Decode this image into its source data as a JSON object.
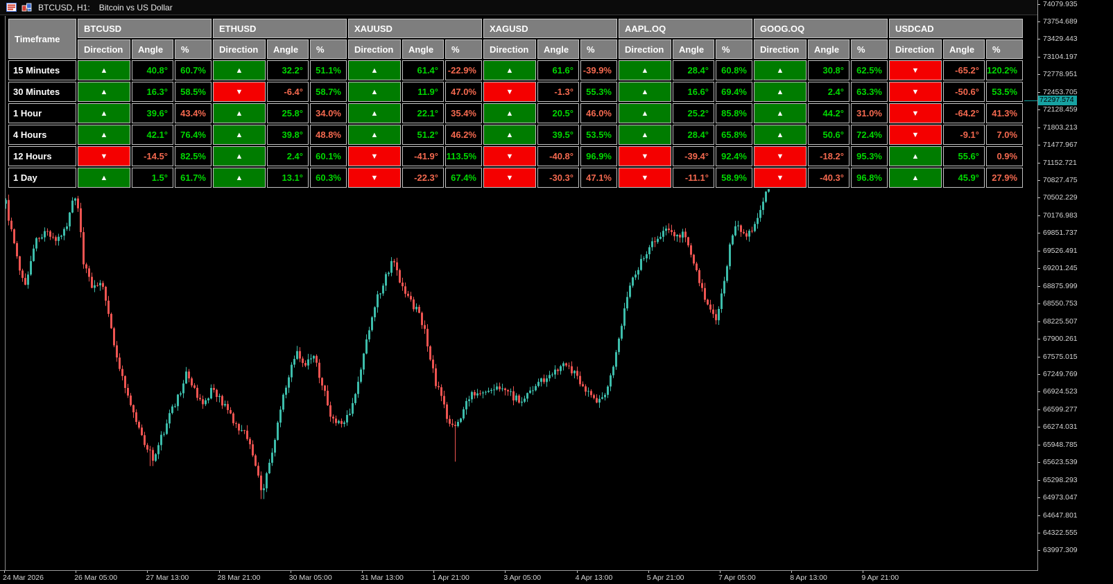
{
  "window": {
    "title_symbol": "BTCUSD, H1:",
    "title_desc": "Bitcoin vs US Dollar"
  },
  "dashboard": {
    "timeframe_header": "Timeframe",
    "sub_headers": [
      "Direction",
      "Angle",
      "%"
    ],
    "symbols": [
      "BTCUSD",
      "ETHUSD",
      "XAUUSD",
      "XAGUSD",
      "AAPL.OQ",
      "GOOG.OQ",
      "USDCAD"
    ],
    "colors": {
      "up_cell": "#007c00",
      "down_cell": "#f40000",
      "positive_text": "#00d800",
      "negative_text": "#f4694f",
      "header_bg": "#7e7e7e",
      "cell_bg": "#000000",
      "border": "#c3c3c3"
    },
    "rows": [
      {
        "tf": "15 Minutes",
        "cells": [
          {
            "d": "up",
            "a": "40.8°",
            "p": "60.7%",
            "pc": "g"
          },
          {
            "d": "up",
            "a": "32.2°",
            "p": "51.1%",
            "pc": "g"
          },
          {
            "d": "up",
            "a": "61.4°",
            "p": "-22.9%",
            "pc": "r"
          },
          {
            "d": "up",
            "a": "61.6°",
            "p": "-39.9%",
            "pc": "r"
          },
          {
            "d": "up",
            "a": "28.4°",
            "p": "60.8%",
            "pc": "g"
          },
          {
            "d": "up",
            "a": "30.8°",
            "p": "62.5%",
            "pc": "g"
          },
          {
            "d": "down",
            "a": "-65.2°",
            "p": "120.2%",
            "pc": "g"
          }
        ]
      },
      {
        "tf": "30 Minutes",
        "cells": [
          {
            "d": "up",
            "a": "16.3°",
            "p": "58.5%",
            "pc": "g"
          },
          {
            "d": "down",
            "a": "-6.4°",
            "p": "58.7%",
            "pc": "g"
          },
          {
            "d": "up",
            "a": "11.9°",
            "p": "47.0%",
            "pc": "r"
          },
          {
            "d": "down",
            "a": "-1.3°",
            "p": "55.3%",
            "pc": "g"
          },
          {
            "d": "up",
            "a": "16.6°",
            "p": "69.4%",
            "pc": "g"
          },
          {
            "d": "up",
            "a": "2.4°",
            "p": "63.3%",
            "pc": "g"
          },
          {
            "d": "down",
            "a": "-50.6°",
            "p": "53.5%",
            "pc": "g"
          }
        ]
      },
      {
        "tf": "1 Hour",
        "cells": [
          {
            "d": "up",
            "a": "39.6°",
            "p": "43.4%",
            "pc": "r"
          },
          {
            "d": "up",
            "a": "25.8°",
            "p": "34.0%",
            "pc": "r"
          },
          {
            "d": "up",
            "a": "22.1°",
            "p": "35.4%",
            "pc": "r"
          },
          {
            "d": "up",
            "a": "20.5°",
            "p": "46.0%",
            "pc": "r"
          },
          {
            "d": "up",
            "a": "25.2°",
            "p": "85.8%",
            "pc": "g"
          },
          {
            "d": "up",
            "a": "44.2°",
            "p": "31.0%",
            "pc": "r"
          },
          {
            "d": "down",
            "a": "-64.2°",
            "p": "41.3%",
            "pc": "r"
          }
        ]
      },
      {
        "tf": "4 Hours",
        "cells": [
          {
            "d": "up",
            "a": "42.1°",
            "p": "76.4%",
            "pc": "g"
          },
          {
            "d": "up",
            "a": "39.8°",
            "p": "48.8%",
            "pc": "r"
          },
          {
            "d": "up",
            "a": "51.2°",
            "p": "46.2%",
            "pc": "r"
          },
          {
            "d": "up",
            "a": "39.5°",
            "p": "53.5%",
            "pc": "g"
          },
          {
            "d": "up",
            "a": "28.4°",
            "p": "65.8%",
            "pc": "g"
          },
          {
            "d": "up",
            "a": "50.6°",
            "p": "72.4%",
            "pc": "g"
          },
          {
            "d": "down",
            "a": "-9.1°",
            "p": "7.0%",
            "pc": "r"
          }
        ]
      },
      {
        "tf": "12 Hours",
        "cells": [
          {
            "d": "down",
            "a": "-14.5°",
            "p": "82.5%",
            "pc": "g"
          },
          {
            "d": "up",
            "a": "2.4°",
            "p": "60.1%",
            "pc": "g"
          },
          {
            "d": "down",
            "a": "-41.9°",
            "p": "113.5%",
            "pc": "g"
          },
          {
            "d": "down",
            "a": "-40.8°",
            "p": "96.9%",
            "pc": "g"
          },
          {
            "d": "down",
            "a": "-39.4°",
            "p": "92.4%",
            "pc": "g"
          },
          {
            "d": "down",
            "a": "-18.2°",
            "p": "95.3%",
            "pc": "g"
          },
          {
            "d": "up",
            "a": "55.6°",
            "p": "0.9%",
            "pc": "r"
          }
        ]
      },
      {
        "tf": "1 Day",
        "cells": [
          {
            "d": "up",
            "a": "1.5°",
            "p": "61.7%",
            "pc": "g"
          },
          {
            "d": "up",
            "a": "13.1°",
            "p": "60.3%",
            "pc": "g"
          },
          {
            "d": "down",
            "a": "-22.3°",
            "p": "67.4%",
            "pc": "g"
          },
          {
            "d": "down",
            "a": "-30.3°",
            "p": "47.1%",
            "pc": "r"
          },
          {
            "d": "down",
            "a": "-11.1°",
            "p": "58.9%",
            "pc": "g"
          },
          {
            "d": "down",
            "a": "-40.3°",
            "p": "96.8%",
            "pc": "g"
          },
          {
            "d": "up",
            "a": "45.9°",
            "p": "27.9%",
            "pc": "r"
          }
        ]
      }
    ]
  },
  "chart_data": {
    "type": "candlestick",
    "symbol": "BTCUSD",
    "timeframe": "H1",
    "current_price": "72297.574",
    "up_color": "#3dbdab",
    "down_color": "#ee5451",
    "price_line_color": "#17a2a2",
    "price_axis": [
      "74079.935",
      "73754.689",
      "73429.443",
      "73104.197",
      "72778.951",
      "72453.705",
      "72128.459",
      "71803.213",
      "71477.967",
      "71152.721",
      "70827.475",
      "70502.229",
      "70176.983",
      "69851.737",
      "69526.491",
      "69201.245",
      "68875.999",
      "68550.753",
      "68225.507",
      "67900.261",
      "67575.015",
      "67249.769",
      "66924.523",
      "66599.277",
      "66274.031",
      "65948.785",
      "65623.539",
      "65298.293",
      "64973.047",
      "64647.801",
      "64322.555",
      "63997.309"
    ],
    "time_axis": [
      "24 Mar 2026",
      "26 Mar 05:00",
      "27 Mar 13:00",
      "28 Mar 21:00",
      "30 Mar 05:00",
      "31 Mar 13:00",
      "1 Apr 21:00",
      "3 Apr 05:00",
      "4 Apr 13:00",
      "5 Apr 21:00",
      "7 Apr 05:00",
      "8 Apr 13:00",
      "9 Apr 21:00"
    ],
    "price_path": [
      [
        8,
        70400
      ],
      [
        20,
        69600
      ],
      [
        35,
        68850
      ],
      [
        50,
        69750
      ],
      [
        65,
        69900
      ],
      [
        80,
        69750
      ],
      [
        95,
        70000
      ],
      [
        105,
        70550
      ],
      [
        112,
        70300
      ],
      [
        120,
        69300
      ],
      [
        132,
        68900
      ],
      [
        145,
        68950
      ],
      [
        158,
        68300
      ],
      [
        170,
        67400
      ],
      [
        182,
        66900
      ],
      [
        195,
        66400
      ],
      [
        208,
        65950
      ],
      [
        220,
        65700
      ],
      [
        232,
        66100
      ],
      [
        245,
        66500
      ],
      [
        258,
        66900
      ],
      [
        268,
        67250
      ],
      [
        280,
        66950
      ],
      [
        292,
        66700
      ],
      [
        305,
        66950
      ],
      [
        318,
        66800
      ],
      [
        330,
        66500
      ],
      [
        342,
        66300
      ],
      [
        355,
        66100
      ],
      [
        368,
        65600
      ],
      [
        378,
        65050
      ],
      [
        390,
        65700
      ],
      [
        402,
        66500
      ],
      [
        415,
        67200
      ],
      [
        428,
        67650
      ],
      [
        440,
        67400
      ],
      [
        452,
        67580
      ],
      [
        465,
        67000
      ],
      [
        478,
        66450
      ],
      [
        490,
        66300
      ],
      [
        502,
        66500
      ],
      [
        515,
        67050
      ],
      [
        528,
        67900
      ],
      [
        542,
        68600
      ],
      [
        556,
        69100
      ],
      [
        566,
        69330
      ],
      [
        578,
        68900
      ],
      [
        590,
        68600
      ],
      [
        602,
        68400
      ],
      [
        615,
        67900
      ],
      [
        628,
        67100
      ],
      [
        642,
        66550
      ],
      [
        655,
        66200
      ],
      [
        668,
        66650
      ],
      [
        680,
        66850
      ],
      [
        695,
        66950
      ],
      [
        710,
        67050
      ],
      [
        725,
        66950
      ],
      [
        738,
        66850
      ],
      [
        752,
        66750
      ],
      [
        765,
        67000
      ],
      [
        778,
        67100
      ],
      [
        790,
        67200
      ],
      [
        800,
        67300
      ],
      [
        812,
        67420
      ],
      [
        825,
        67300
      ],
      [
        838,
        67100
      ],
      [
        850,
        66850
      ],
      [
        862,
        66700
      ],
      [
        875,
        67000
      ],
      [
        888,
        67600
      ],
      [
        900,
        68500
      ],
      [
        912,
        69000
      ],
      [
        925,
        69350
      ],
      [
        938,
        69600
      ],
      [
        950,
        69800
      ],
      [
        962,
        70000
      ],
      [
        975,
        69750
      ],
      [
        985,
        69900
      ],
      [
        998,
        69400
      ],
      [
        1010,
        68900
      ],
      [
        1022,
        68500
      ],
      [
        1032,
        68300
      ],
      [
        1042,
        68800
      ],
      [
        1052,
        69600
      ],
      [
        1062,
        70100
      ],
      [
        1072,
        69800
      ],
      [
        1082,
        69900
      ],
      [
        1092,
        70200
      ],
      [
        1102,
        70500
      ],
      [
        1112,
        70900
      ],
      [
        1122,
        71300
      ],
      [
        1132,
        71800
      ],
      [
        1144,
        72297.574
      ]
    ],
    "spike_lows": [
      [
        378,
        64950
      ],
      [
        655,
        65640
      ],
      [
        218,
        65560
      ]
    ]
  }
}
